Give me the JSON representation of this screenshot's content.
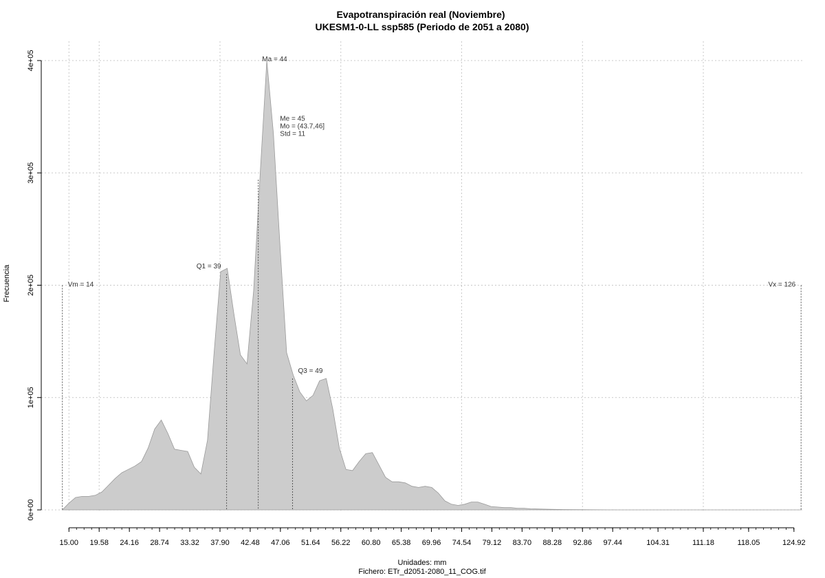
{
  "chart_data": {
    "type": "area",
    "title": "Evapotranspiración real (Noviembre)",
    "subtitle": "UKESM1-0-LL ssp585 (Periodo de 2051 a 2080)",
    "xlabel": "Unidades: mm",
    "ylabel": "Frecuencia",
    "footer": "Fichero: ETr_d2051-2080_11_COG.tif",
    "xlim": [
      10.8,
      126.5
    ],
    "ylim": [
      0,
      400000
    ],
    "grid": true,
    "fill_color": "#cccccc",
    "line_color": "#999999",
    "x_ticks": [
      "15.00",
      "19.58",
      "24.16",
      "28.74",
      "33.32",
      "37.90",
      "42.48",
      "47.06",
      "51.64",
      "56.22",
      "60.80",
      "65.38",
      "69.96",
      "74.54",
      "79.12",
      "83.70",
      "88.28",
      "92.86",
      "97.44",
      "104.31",
      "111.18",
      "118.05",
      "124.92"
    ],
    "y_ticks": [
      {
        "value": 0,
        "label": "0e+00"
      },
      {
        "value": 100000,
        "label": "1e+05"
      },
      {
        "value": 200000,
        "label": "2e+05"
      },
      {
        "value": 300000,
        "label": "3e+05"
      },
      {
        "value": 400000,
        "label": "4e+05"
      }
    ],
    "vgrid_x": [
      15.0,
      19.58,
      37.9,
      56.22,
      74.54,
      92.86,
      111.18
    ],
    "x": [
      14,
      15,
      16,
      17,
      18,
      19,
      20,
      21,
      22,
      23,
      24,
      25,
      26,
      27,
      28,
      29,
      30,
      31,
      32,
      33,
      34,
      35,
      36,
      37,
      38,
      39,
      40,
      41,
      42,
      43,
      44,
      45,
      46,
      47,
      48,
      49,
      50,
      51,
      52,
      53,
      54,
      55,
      56,
      57,
      58,
      59,
      60,
      61,
      62,
      63,
      64,
      65,
      66,
      67,
      68,
      69,
      70,
      71,
      72,
      73,
      74,
      75,
      76,
      77,
      78,
      79,
      80,
      81,
      82,
      83,
      84,
      85,
      86,
      88,
      90,
      92,
      94,
      96,
      98,
      100,
      105,
      110,
      115,
      120,
      125,
      126
    ],
    "values": [
      0,
      6000,
      11000,
      12000,
      12000,
      13000,
      16000,
      22000,
      28000,
      33000,
      36000,
      39000,
      43000,
      55000,
      72000,
      80000,
      68000,
      54000,
      53000,
      52000,
      38000,
      32000,
      62000,
      140000,
      212000,
      215000,
      175000,
      138000,
      130000,
      195000,
      300000,
      400000,
      335000,
      235000,
      140000,
      120000,
      105000,
      97000,
      102000,
      115000,
      117000,
      90000,
      55000,
      36000,
      35000,
      43000,
      50000,
      51000,
      40000,
      29000,
      25000,
      25000,
      24000,
      21000,
      20000,
      21000,
      20000,
      15000,
      8000,
      5000,
      4000,
      5000,
      7000,
      7000,
      5000,
      3000,
      2500,
      2000,
      2000,
      1500,
      1500,
      1000,
      800,
      500,
      300,
      200,
      100,
      50,
      30,
      20,
      10,
      5,
      3,
      2,
      1,
      0
    ],
    "markers": [
      {
        "x": 14,
        "label": "Vm = 14",
        "height": 200000,
        "side": "right"
      },
      {
        "x": 38.9,
        "label": "Q1 = 39",
        "height": 210000,
        "side": "left",
        "label_value": 210000
      },
      {
        "x": 43.7,
        "label": "",
        "height": 0,
        "side": "none"
      },
      {
        "x": 48.9,
        "label": "Q3 = 49",
        "height": 117000,
        "side": "right",
        "label_value": 117000
      },
      {
        "x": 126,
        "label": "Vx = 126",
        "height": 200000,
        "side": "left"
      }
    ],
    "peak": {
      "x": 44.5,
      "label": "Ma = 44",
      "value": 400000
    },
    "stats_lines": [
      "Me = 45",
      "Mo = (43.7,46]",
      "Std = 11"
    ],
    "stats_anchor": {
      "x": 47,
      "y": 328000
    }
  }
}
